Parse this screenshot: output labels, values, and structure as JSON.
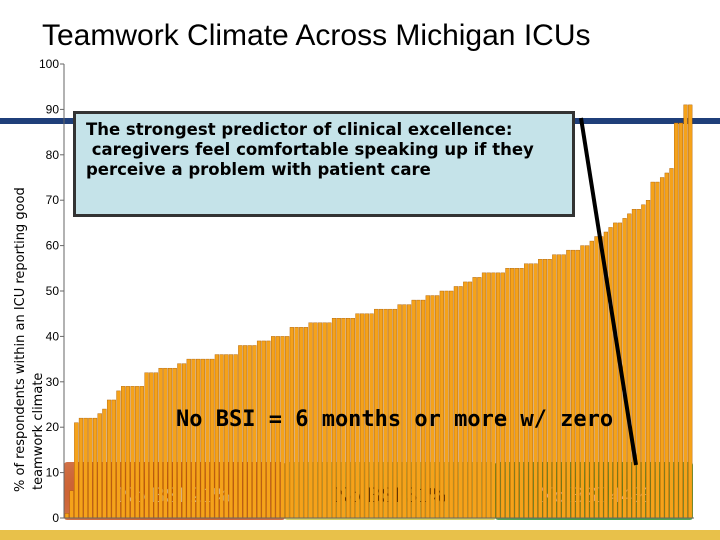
{
  "title": "Teamwork Climate Across Michigan ICUs",
  "colors": {
    "bar": "#f5a21a",
    "bar_edge": "#a85a00",
    "group1": "#c2440c",
    "group2": "#c6c23a",
    "group3": "#1e8a22"
  },
  "callout_lines": [
    "The strongest predictor of clinical excellence:",
    " caregivers feel comfortable speaking up if they",
    "perceive a problem with patient care"
  ],
  "bsi_definition": "No BSI = 6 months or more w/ zero",
  "chart_data": {
    "type": "bar",
    "title": "Teamwork Climate Across Michigan ICUs",
    "ylabel": "% of respondents within an ICU reporting good teamwork climate",
    "ylabel_lines": [
      "% of respondents within an ICU reporting good",
      "teamwork climate"
    ],
    "xlabel": "",
    "ylim": [
      0,
      100
    ],
    "yticks": [
      0,
      10,
      20,
      30,
      40,
      50,
      60,
      70,
      80,
      90,
      100
    ],
    "grid": false,
    "values": [
      1,
      6,
      21,
      22,
      22,
      22,
      22,
      23,
      24,
      26,
      26,
      28,
      29,
      29,
      29,
      29,
      29,
      32,
      32,
      32,
      33,
      33,
      33,
      33,
      34,
      34,
      35,
      35,
      35,
      35,
      35,
      35,
      36,
      36,
      36,
      36,
      36,
      38,
      38,
      38,
      38,
      39,
      39,
      39,
      40,
      40,
      40,
      40,
      42,
      42,
      42,
      42,
      43,
      43,
      43,
      43,
      43,
      44,
      44,
      44,
      44,
      44,
      45,
      45,
      45,
      45,
      46,
      46,
      46,
      46,
      46,
      47,
      47,
      47,
      48,
      48,
      48,
      49,
      49,
      49,
      50,
      50,
      50,
      51,
      51,
      52,
      52,
      53,
      53,
      54,
      54,
      54,
      54,
      54,
      55,
      55,
      55,
      55,
      56,
      56,
      56,
      57,
      57,
      57,
      58,
      58,
      58,
      59,
      59,
      59,
      60,
      60,
      61,
      62,
      62,
      63,
      64,
      65,
      65,
      66,
      67,
      68,
      68,
      69,
      70,
      74,
      74,
      75,
      76,
      77,
      87,
      87,
      91,
      91
    ],
    "groups": [
      {
        "label": "No BSI 21%",
        "range": [
          0,
          46
        ]
      },
      {
        "label": "No BSI 31%",
        "range": [
          47,
          91
        ]
      },
      {
        "label": "No BSI 44%",
        "range": [
          92,
          133
        ]
      }
    ]
  }
}
